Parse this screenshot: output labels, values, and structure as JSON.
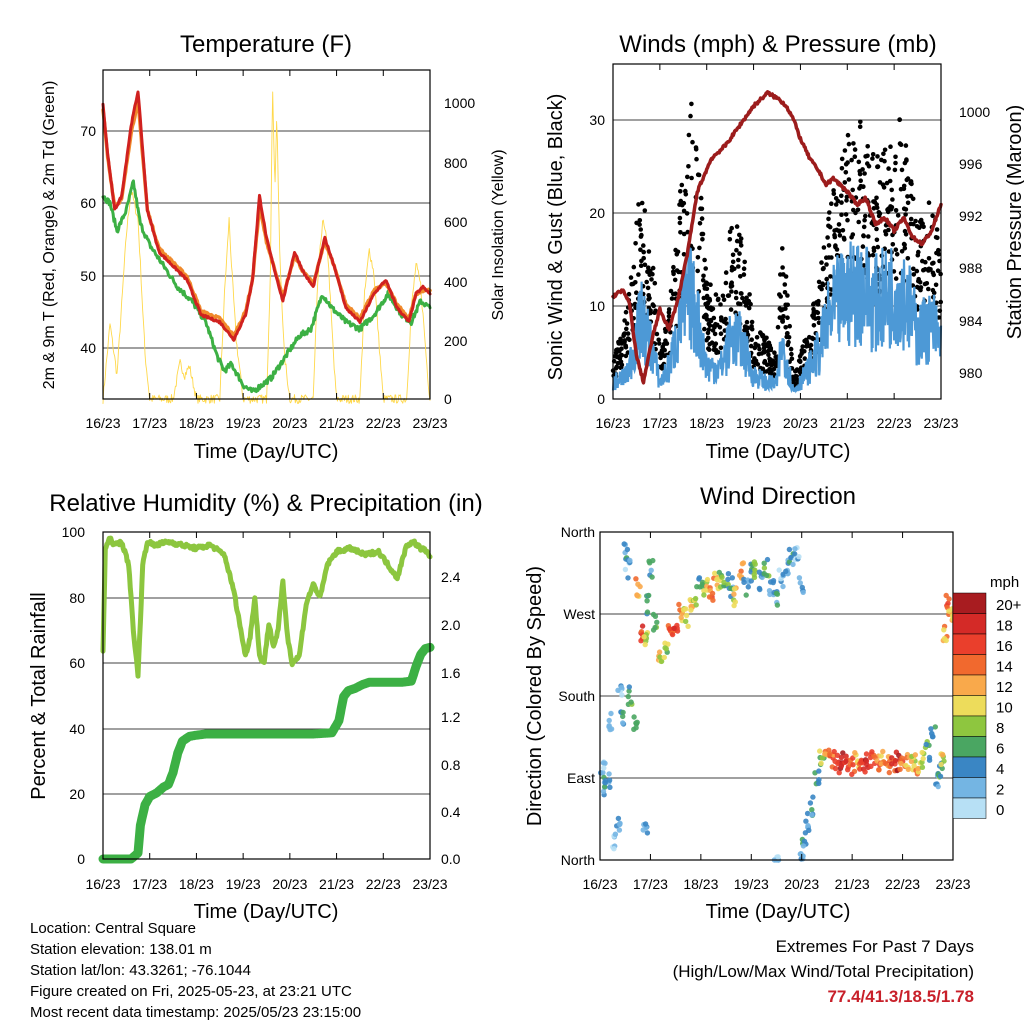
{
  "colors": {
    "temp_2m": "#d0211f",
    "temp_9m": "#f08a2c",
    "dewpoint": "#3cb044",
    "solar": "#ffd84a",
    "gust": "#000000",
    "wind": "#4d99d6",
    "pressure": "#9c1c1c",
    "rh": "#8cc63f",
    "precip": "#3cb044",
    "extremes": "#c8202a"
  },
  "time_ticks": [
    "16/23",
    "17/23",
    "18/23",
    "19/23",
    "20/23",
    "21/23",
    "22/23",
    "23/23"
  ],
  "info": {
    "location": "Location: Central Square",
    "elevation": "Station elevation: 138.01 m",
    "latlon": "Station lat/lon: 43.3261; -76.1044",
    "created": "Figure created on Fri, 2025-05-23, at 23:21 UTC",
    "recent": "Most recent data timestamp: 2025/05/23 23:15:00"
  },
  "extremes": {
    "title": "Extremes For Past 7 Days",
    "subtitle": "(High/Low/Max Wind/Total Precipitation)",
    "values": "77.4/41.3/18.5/1.78"
  },
  "chart_data": [
    {
      "type": "line",
      "title": "Temperature (F)",
      "xlabel": "Time (Day/UTC)",
      "ylabel": "2m & 9m T (Red, Orange) & 2m Td (Green)",
      "y2label": "Solar Insolation (Yellow)",
      "xlim": [
        0,
        7
      ],
      "ylim": [
        33,
        80
      ],
      "yticks": [
        40,
        50,
        60,
        70
      ],
      "y2lim": [
        0,
        1100
      ],
      "y2ticks": [
        0,
        200,
        400,
        600,
        800,
        1000
      ],
      "series": [
        {
          "name": "2m T",
          "x": [
            0,
            0.1,
            0.25,
            0.4,
            0.6,
            0.75,
            0.95,
            1.2,
            1.5,
            1.8,
            2.1,
            2.5,
            2.8,
            3.05,
            3.2,
            3.35,
            3.5,
            3.65,
            3.85,
            4.1,
            4.3,
            4.5,
            4.75,
            4.95,
            5.2,
            5.5,
            5.8,
            6.05,
            6.3,
            6.55,
            6.7,
            6.85,
            7
          ],
          "values": [
            75,
            68,
            60,
            62,
            72,
            77,
            60,
            54,
            52,
            50,
            45,
            44,
            41.5,
            45,
            50,
            62,
            56,
            52,
            47,
            54,
            51,
            49,
            56,
            52,
            46,
            44,
            48,
            50,
            46,
            44,
            48,
            49,
            48
          ]
        },
        {
          "name": "9m T",
          "x": [
            0,
            0.1,
            0.25,
            0.4,
            0.6,
            0.75,
            0.95,
            1.2,
            1.5,
            1.8,
            2.1,
            2.5,
            2.8,
            3.05,
            3.2,
            3.35,
            3.5,
            3.65,
            3.85,
            4.1,
            4.3,
            4.5,
            4.75,
            4.95,
            5.2,
            5.5,
            5.8,
            6.05,
            6.3,
            6.55,
            6.7,
            6.85,
            7
          ],
          "values": [
            74.5,
            67.5,
            60.5,
            61.5,
            71,
            75.5,
            60,
            54.5,
            52.5,
            50.5,
            45.5,
            44.5,
            42,
            45.5,
            50,
            60.5,
            55.5,
            52,
            47.5,
            53.5,
            51,
            49.5,
            55.5,
            52,
            46.5,
            44.5,
            48.5,
            49.5,
            46.5,
            44.5,
            48,
            48.5,
            48.5
          ]
        },
        {
          "name": "2m Td",
          "x": [
            0,
            0.15,
            0.3,
            0.5,
            0.65,
            0.8,
            1.0,
            1.3,
            1.6,
            1.9,
            2.2,
            2.45,
            2.6,
            2.75,
            3.0,
            3.2,
            3.4,
            3.6,
            3.8,
            4.0,
            4.2,
            4.45,
            4.7,
            4.9,
            5.2,
            5.5,
            5.8,
            6.1,
            6.4,
            6.6,
            6.8,
            7
          ],
          "values": [
            62,
            61,
            57,
            60,
            64,
            58,
            55,
            52,
            49,
            47,
            44,
            39,
            37,
            38,
            35,
            34,
            35,
            36,
            38,
            40,
            42,
            43,
            48,
            46,
            44,
            43,
            45,
            48,
            45,
            44,
            47,
            46
          ]
        },
        {
          "name": "Solar",
          "x": [
            0,
            0.15,
            0.3,
            0.5,
            0.6,
            0.75,
            0.9,
            1.0,
            1.5,
            1.65,
            1.75,
            1.85,
            2.0,
            2.5,
            2.6,
            2.7,
            2.75,
            2.85,
            3.0,
            3.5,
            3.58,
            3.63,
            3.68,
            3.72,
            3.78,
            3.88,
            4.0,
            4.5,
            4.6,
            4.7,
            4.8,
            4.95,
            5.0,
            5.5,
            5.6,
            5.7,
            5.8,
            5.95,
            6.0,
            6.5,
            6.6,
            6.7,
            6.8,
            6.95,
            7
          ],
          "values": [
            0,
            250,
            80,
            550,
            700,
            600,
            150,
            0,
            0,
            120,
            80,
            110,
            0,
            0,
            350,
            600,
            450,
            200,
            0,
            0,
            400,
            1060,
            700,
            950,
            500,
            150,
            0,
            0,
            400,
            600,
            520,
            100,
            0,
            0,
            350,
            500,
            420,
            100,
            0,
            0,
            300,
            450,
            380,
            80,
            0
          ]
        }
      ]
    },
    {
      "type": "scatter",
      "title": "Winds (mph) & Pressure (mb)",
      "xlabel": "Time (Day/UTC)",
      "ylabel": "Sonic Wind & Gust (Blue, Black)",
      "y2label": "Station Pressure (Maroon)",
      "xlim": [
        0,
        7
      ],
      "ylim": [
        0,
        36
      ],
      "yticks": [
        0,
        10,
        20,
        30
      ],
      "y2lim": [
        978.2,
        1003.7
      ],
      "y2ticks": [
        980,
        984,
        988,
        992,
        996,
        1000
      ],
      "series": [
        {
          "name": "Gust",
          "x": [
            0,
            0.3,
            0.6,
            0.85,
            1.0,
            1.2,
            1.5,
            1.65,
            1.8,
            2.0,
            2.3,
            2.55,
            2.75,
            3.0,
            3.3,
            3.5,
            3.6,
            3.7,
            3.85,
            4.1,
            4.4,
            4.6,
            4.8,
            5.0,
            5.3,
            5.6,
            5.9,
            6.1,
            6.3,
            6.5,
            6.7,
            6.85,
            7
          ],
          "values": [
            3,
            8,
            18,
            12,
            4,
            8,
            20,
            26,
            22,
            10,
            8,
            16,
            14,
            6,
            5,
            4,
            14,
            10,
            2,
            5,
            10,
            16,
            20,
            22,
            23,
            20,
            22,
            24,
            20,
            14,
            17,
            16,
            13
          ]
        },
        {
          "name": "Wind",
          "x": [
            0,
            0.3,
            0.6,
            0.85,
            1.0,
            1.2,
            1.5,
            1.65,
            1.8,
            2.0,
            2.3,
            2.55,
            2.75,
            3.0,
            3.3,
            3.5,
            3.6,
            3.7,
            3.85,
            4.1,
            4.4,
            4.6,
            4.8,
            5.0,
            5.3,
            5.6,
            5.9,
            6.1,
            6.3,
            6.5,
            6.7,
            6.85,
            7
          ],
          "values": [
            2,
            3,
            10,
            6,
            2,
            4,
            11,
            13,
            10,
            4,
            4,
            8,
            7,
            3,
            2,
            2,
            7,
            5,
            1,
            3,
            6,
            10,
            12,
            13,
            14,
            12,
            13,
            14,
            12,
            8,
            9,
            9,
            7
          ]
        },
        {
          "name": "Pressure",
          "x": [
            0,
            0.2,
            0.35,
            0.5,
            0.65,
            0.85,
            1.0,
            1.2,
            1.4,
            1.6,
            1.8,
            2.1,
            2.4,
            2.7,
            3.0,
            3.3,
            3.55,
            3.7,
            3.85,
            4.0,
            4.2,
            4.4,
            4.55,
            4.7,
            4.85,
            5.0,
            5.2,
            5.4,
            5.6,
            5.8,
            6.0,
            6.2,
            6.4,
            6.6,
            6.8,
            7
          ],
          "values": [
            986,
            986.5,
            985.5,
            981.5,
            979.5,
            983,
            985,
            983.5,
            986,
            989.5,
            994,
            996.5,
            997.5,
            999,
            1000.5,
            1001.5,
            1001,
            1000.5,
            999.5,
            998,
            996.5,
            995.5,
            994.5,
            995,
            994.5,
            994,
            993,
            993.5,
            991.5,
            992,
            991,
            992,
            990.5,
            990,
            991,
            993
          ]
        }
      ]
    },
    {
      "type": "line",
      "title": "Relative Humidity (%) & Precipitation (in)",
      "xlabel": "Time (Day/UTC)",
      "ylabel": "Percent & Total Rainfall",
      "xlim": [
        0,
        7
      ],
      "ylim": [
        0,
        100
      ],
      "yticks": [
        0,
        20,
        40,
        60,
        80,
        100
      ],
      "y2lim": [
        0,
        2.72
      ],
      "y2ticks": [
        0.0,
        0.4,
        0.8,
        1.2,
        1.6,
        2.0,
        2.4
      ],
      "series": [
        {
          "name": "RH",
          "x": [
            0,
            0.05,
            0.15,
            0.25,
            0.4,
            0.55,
            0.65,
            0.75,
            0.85,
            0.95,
            1.1,
            1.4,
            1.7,
            2.0,
            2.3,
            2.6,
            2.8,
            2.95,
            3.05,
            3.15,
            3.25,
            3.35,
            3.45,
            3.55,
            3.65,
            3.75,
            3.85,
            3.95,
            4.05,
            4.2,
            4.35,
            4.5,
            4.65,
            4.8,
            5.0,
            5.3,
            5.6,
            5.9,
            6.1,
            6.3,
            6.5,
            6.65,
            6.8,
            6.95,
            7
          ],
          "values": [
            64,
            95,
            98,
            96,
            97,
            90,
            70,
            56,
            90,
            97,
            96,
            97,
            96,
            95,
            96,
            93,
            82,
            70,
            62,
            68,
            80,
            62,
            60,
            72,
            65,
            70,
            85,
            68,
            60,
            62,
            78,
            84,
            80,
            90,
            94,
            95,
            93,
            94,
            90,
            86,
            96,
            97,
            95,
            94,
            92
          ]
        },
        {
          "name": "Precip",
          "x": [
            0,
            0.6,
            0.75,
            0.8,
            0.9,
            1.0,
            1.15,
            1.3,
            1.4,
            1.5,
            1.6,
            1.7,
            1.85,
            2.0,
            2.2,
            2.5,
            3.0,
            3.5,
            4.0,
            4.5,
            4.9,
            5.05,
            5.15,
            5.25,
            5.4,
            5.55,
            5.7,
            6.0,
            6.4,
            6.6,
            6.7,
            6.8,
            6.9,
            7
          ],
          "values": [
            0,
            0,
            0.05,
            0.28,
            0.45,
            0.52,
            0.55,
            0.6,
            0.62,
            0.72,
            0.88,
            0.98,
            1.02,
            1.03,
            1.04,
            1.04,
            1.04,
            1.04,
            1.04,
            1.04,
            1.05,
            1.15,
            1.35,
            1.4,
            1.42,
            1.45,
            1.47,
            1.47,
            1.47,
            1.48,
            1.6,
            1.7,
            1.75,
            1.76
          ]
        }
      ]
    },
    {
      "type": "scatter",
      "title": "Wind Direction",
      "xlabel": "Time (Day/UTC)",
      "ylabel": "Direction (Colored By Speed)",
      "xlim": [
        0,
        7
      ],
      "ylim": [
        0,
        360
      ],
      "ycategories": [
        "North",
        "East",
        "South",
        "West",
        "North"
      ],
      "legend_title": "mph",
      "legend_labels": [
        "20+",
        "18",
        "16",
        "14",
        "12",
        "10",
        "8",
        "6",
        "4",
        "2",
        "0"
      ],
      "legend_colors": [
        "#a81c20",
        "#d42a27",
        "#ea3f2c",
        "#f1692e",
        "#f9a94b",
        "#eddc5b",
        "#8ec63f",
        "#4aa662",
        "#3a86c4",
        "#74b5e3",
        "#b7e0f5"
      ],
      "x": [
        0.05,
        0.1,
        0.15,
        0.2,
        0.3,
        0.35,
        0.5,
        0.55,
        0.6,
        0.7,
        0.75,
        0.8,
        0.9,
        0.95,
        1.0,
        1.1,
        1.2,
        1.3,
        1.4,
        1.5,
        1.6,
        1.7,
        1.8,
        1.9,
        2.0,
        2.1,
        2.2,
        2.3,
        2.4,
        2.5,
        2.6,
        2.7,
        2.8,
        2.9,
        3.0,
        3.1,
        3.2,
        3.3,
        3.4,
        3.5,
        3.6,
        3.7,
        3.8,
        3.9,
        4.0,
        4.1,
        4.2,
        4.3,
        4.4,
        4.5,
        4.6,
        4.7,
        4.8,
        4.9,
        5.0,
        5.1,
        5.2,
        5.3,
        5.4,
        5.5,
        5.6,
        5.7,
        5.8,
        5.9,
        6.0,
        6.1,
        6.2,
        6.3,
        6.4,
        6.5,
        6.6,
        6.7,
        6.75,
        6.8,
        6.85,
        6.9,
        6.95,
        0.4,
        0.45,
        0.9,
        3.5,
        4.0,
        4.05
      ],
      "values": [
        100,
        80,
        90,
        150,
        20,
        40,
        340,
        320,
        180,
        150,
        300,
        250,
        240,
        280,
        320,
        260,
        220,
        230,
        250,
        260,
        270,
        265,
        275,
        290,
        305,
        300,
        295,
        305,
        310,
        310,
        300,
        290,
        320,
        300,
        315,
        320,
        305,
        320,
        300,
        290,
        310,
        320,
        330,
        340,
        10,
        40,
        60,
        90,
        110,
        120,
        110,
        105,
        108,
        110,
        105,
        110,
        105,
        106,
        112,
        108,
        110,
        106,
        104,
        108,
        110,
        106,
        108,
        105,
        110,
        120,
        140,
        90,
        100,
        110,
        250,
        280,
        270,
        190,
        160,
        30,
        0,
        300,
        20
      ],
      "speeds": [
        2,
        4,
        3,
        2,
        1,
        3,
        4,
        2,
        6,
        5,
        12,
        16,
        8,
        6,
        4,
        6,
        10,
        8,
        14,
        16,
        12,
        10,
        12,
        8,
        6,
        10,
        14,
        12,
        8,
        6,
        4,
        10,
        12,
        4,
        6,
        8,
        4,
        6,
        2,
        4,
        2,
        3,
        4,
        2,
        2,
        3,
        4,
        6,
        8,
        12,
        14,
        16,
        18,
        16,
        14,
        12,
        16,
        18,
        16,
        14,
        12,
        14,
        16,
        18,
        14,
        12,
        10,
        12,
        8,
        6,
        4,
        4,
        6,
        10,
        12,
        14,
        10,
        2,
        4,
        2,
        2,
        2,
        4
      ]
    }
  ]
}
